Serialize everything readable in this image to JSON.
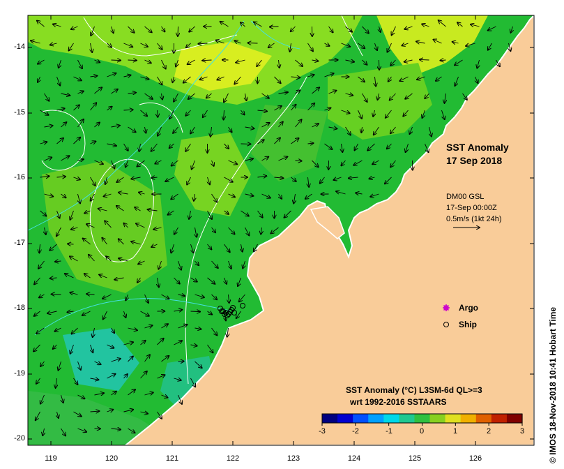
{
  "map": {
    "title_line1": "SST Anomaly",
    "title_line2": "17 Sep 2018",
    "currents": {
      "model": "DM00 GSL",
      "time": "17-Sep 00:00Z",
      "scale": "0.5m/s (1kt 24h)"
    },
    "legend": {
      "argo_label": "Argo",
      "ship_label": "Ship",
      "argo_color": "#cc00cc"
    },
    "colorbar": {
      "title_line1": "SST Anomaly (°C) L3SM-6d QL>=3",
      "title_line2": "wrt 1992-2016 SSTAARS",
      "ticks": [
        "-3",
        "-2",
        "-1",
        "0",
        "1",
        "2",
        "3"
      ],
      "colors": [
        "#000080",
        "#0000d0",
        "#0050ff",
        "#00a0ff",
        "#00d8e8",
        "#20c890",
        "#30c040",
        "#88d020",
        "#e0e020",
        "#f0b000",
        "#e06000",
        "#c02000",
        "#800000"
      ]
    },
    "axes": {
      "lat_ticks": [
        "-14",
        "-15",
        "-16",
        "-17",
        "-18",
        "-19",
        "-20"
      ],
      "lon_ticks": [
        "119",
        "120",
        "121",
        "122",
        "123",
        "124",
        "125",
        "126"
      ]
    },
    "credit": "© IMOS 18-Nov-2018 10:41 Hobart Time",
    "colors": {
      "land": "#f9cc99",
      "ocean_base": "#22bb33",
      "ocean_light": "#88dd22",
      "ocean_yellow": "#d8ee20",
      "ocean_cyan": "#22c4a0"
    }
  }
}
